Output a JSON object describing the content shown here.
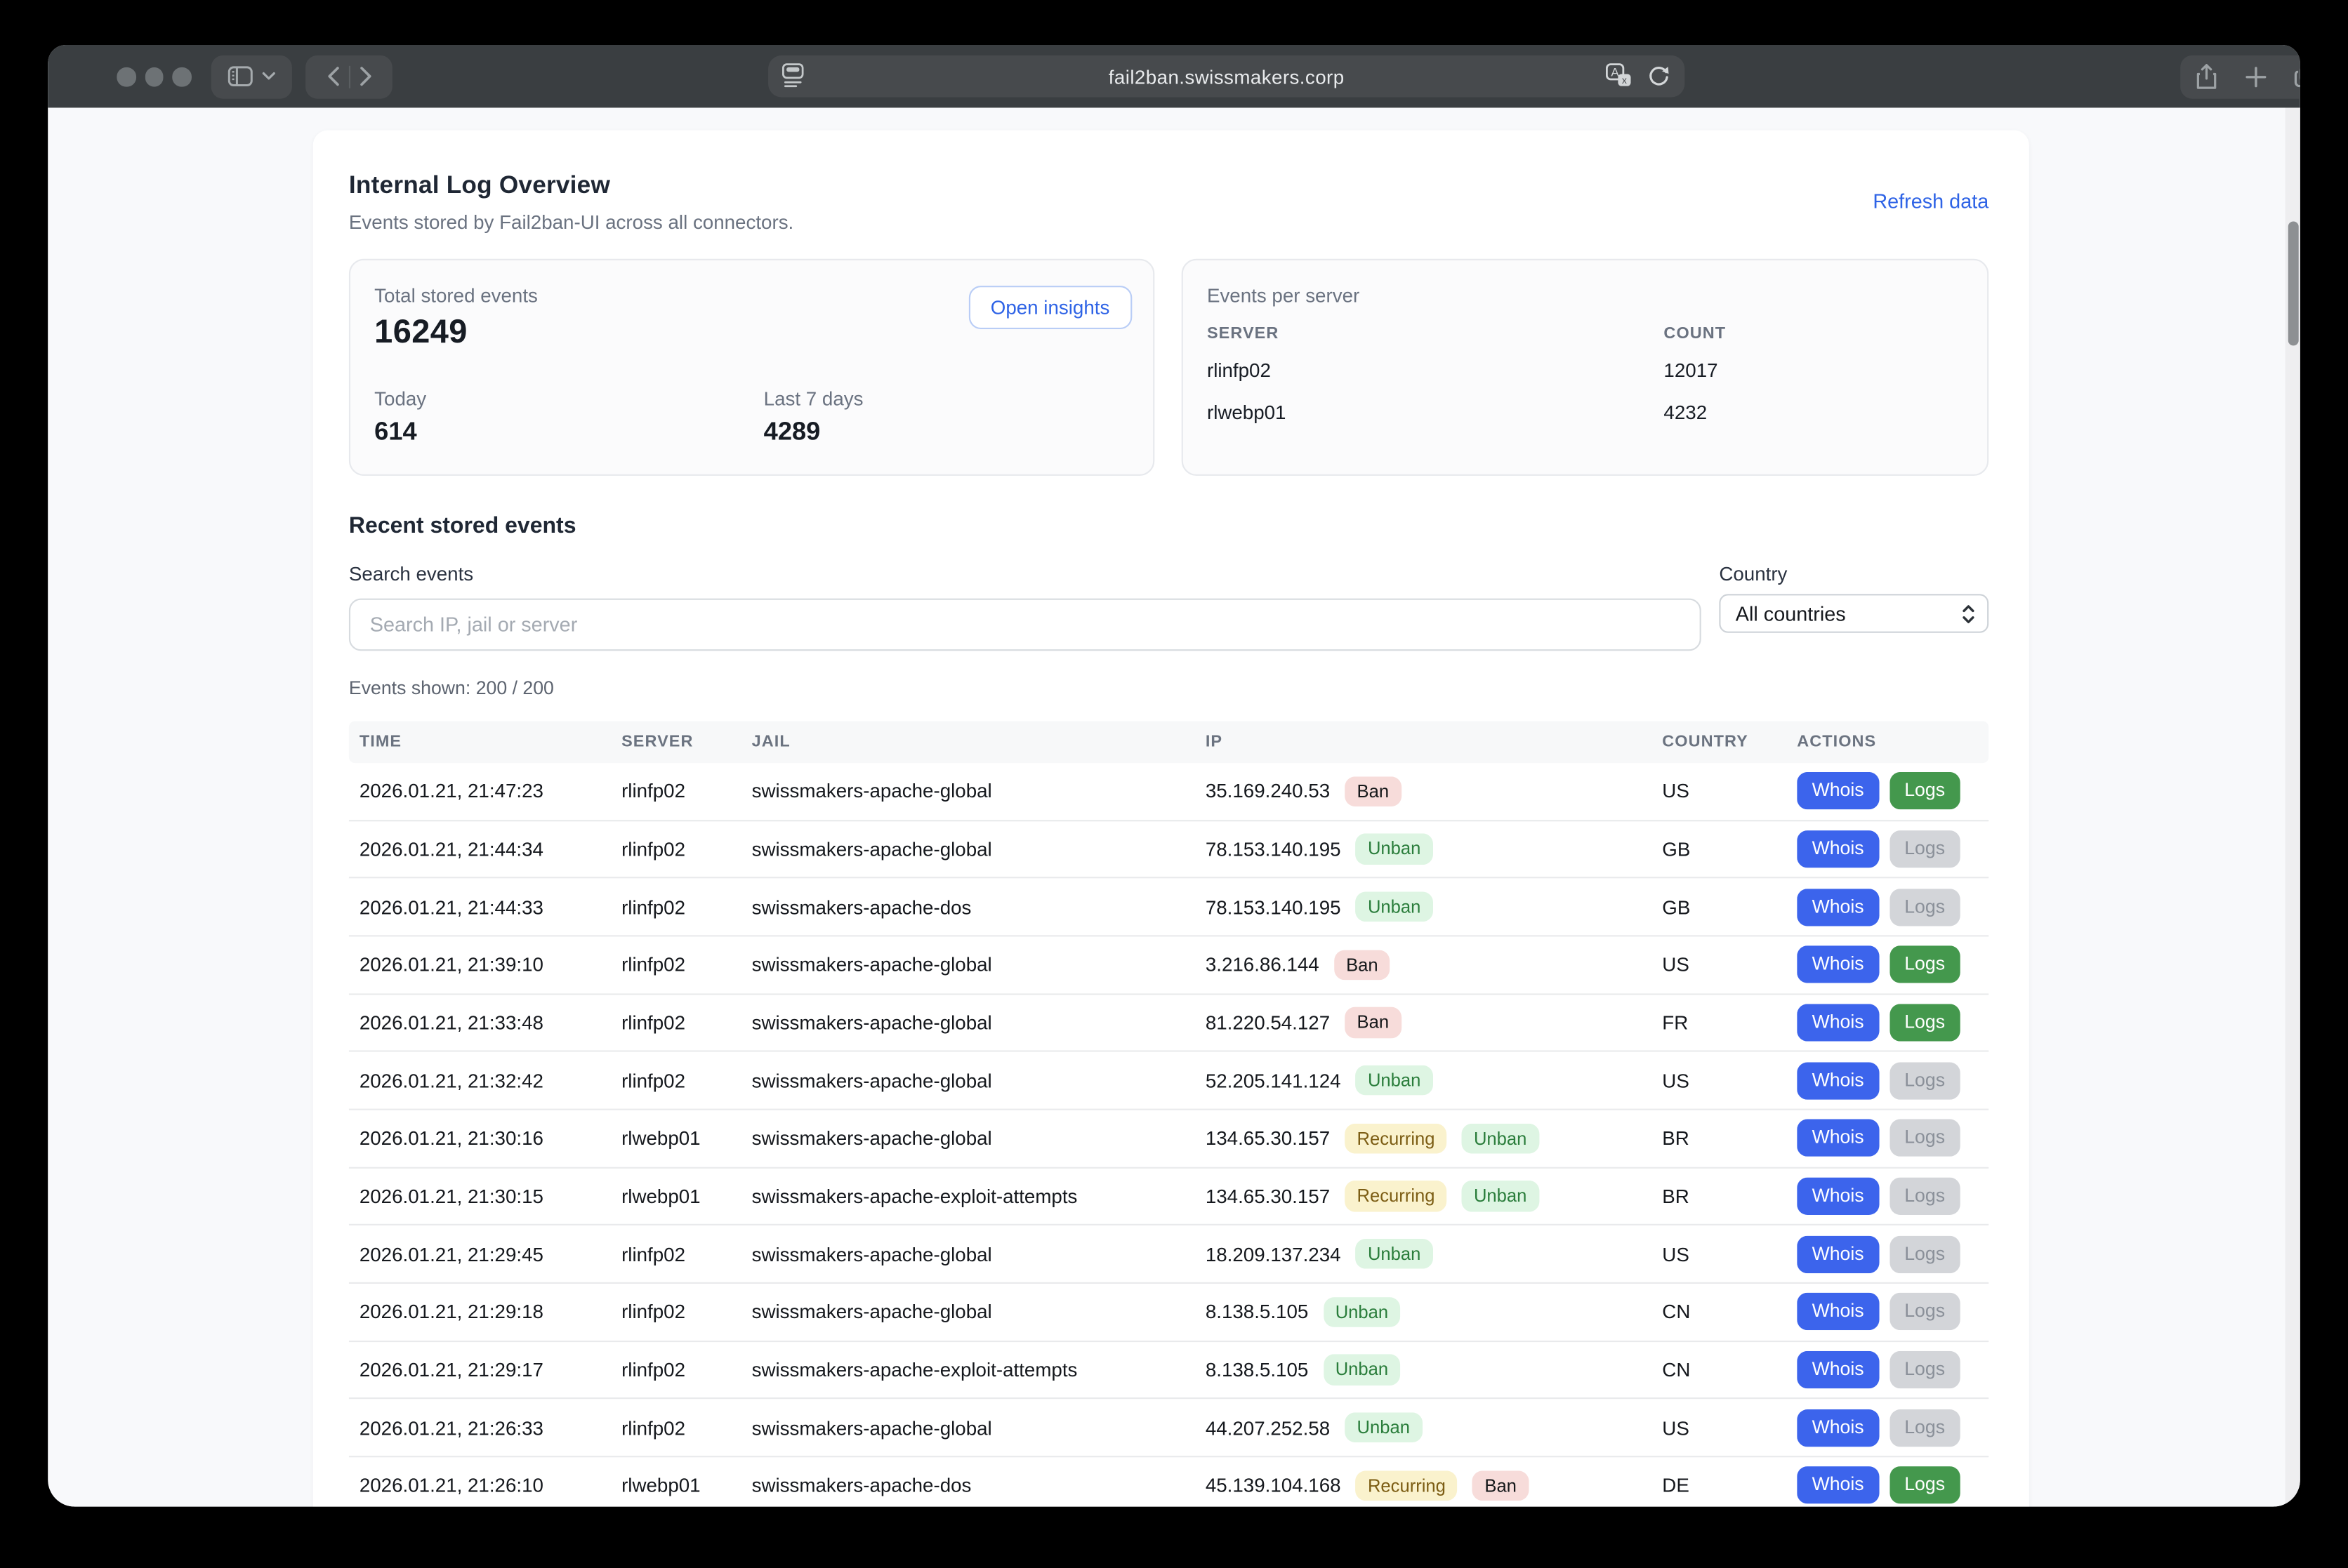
{
  "browser": {
    "url": "fail2ban.swissmakers.corp",
    "icons": [
      "sidebar-icon",
      "chevron-down-icon",
      "back-icon",
      "forward-icon",
      "page-icon",
      "translate-icon",
      "reload-icon",
      "share-icon",
      "new-tab-icon",
      "tab-overview-icon"
    ]
  },
  "page": {
    "title": "Internal Log Overview",
    "subtitle": "Events stored by Fail2ban-UI across all connectors.",
    "refresh_link": "Refresh data",
    "stats": {
      "total_label": "Total stored events",
      "total_value": "16249",
      "open_insights_label": "Open insights",
      "today_label": "Today",
      "today_value": "614",
      "week_label": "Last 7 days",
      "week_value": "4289"
    },
    "per_server": {
      "title": "Events per server",
      "col_server": "SERVER",
      "col_count": "COUNT",
      "rows": [
        {
          "server": "rlinfp02",
          "count": "12017"
        },
        {
          "server": "rlwebp01",
          "count": "4232"
        }
      ]
    },
    "events": {
      "heading": "Recent stored events",
      "search_label": "Search events",
      "search_placeholder": "Search IP, jail or server",
      "search_value": "",
      "country_label": "Country",
      "country_value": "All countries",
      "shown_text": "Events shown: 200 / 200",
      "columns": [
        "TIME",
        "SERVER",
        "JAIL",
        "IP",
        "COUNTRY",
        "ACTIONS"
      ],
      "actions": {
        "whois_label": "Whois",
        "logs_label": "Logs"
      },
      "rows": [
        {
          "time": "2026.01.21, 21:47:23",
          "server": "rlinfp02",
          "jail": "swissmakers-apache-global",
          "ip": "35.169.240.53",
          "badges": [
            {
              "label": "Ban",
              "type": "ban"
            }
          ],
          "country": "US",
          "logs_active": true
        },
        {
          "time": "2026.01.21, 21:44:34",
          "server": "rlinfp02",
          "jail": "swissmakers-apache-global",
          "ip": "78.153.140.195",
          "badges": [
            {
              "label": "Unban",
              "type": "unban"
            }
          ],
          "country": "GB",
          "logs_active": false
        },
        {
          "time": "2026.01.21, 21:44:33",
          "server": "rlinfp02",
          "jail": "swissmakers-apache-dos",
          "ip": "78.153.140.195",
          "badges": [
            {
              "label": "Unban",
              "type": "unban"
            }
          ],
          "country": "GB",
          "logs_active": false
        },
        {
          "time": "2026.01.21, 21:39:10",
          "server": "rlinfp02",
          "jail": "swissmakers-apache-global",
          "ip": "3.216.86.144",
          "badges": [
            {
              "label": "Ban",
              "type": "ban"
            }
          ],
          "country": "US",
          "logs_active": true
        },
        {
          "time": "2026.01.21, 21:33:48",
          "server": "rlinfp02",
          "jail": "swissmakers-apache-global",
          "ip": "81.220.54.127",
          "badges": [
            {
              "label": "Ban",
              "type": "ban"
            }
          ],
          "country": "FR",
          "logs_active": true
        },
        {
          "time": "2026.01.21, 21:32:42",
          "server": "rlinfp02",
          "jail": "swissmakers-apache-global",
          "ip": "52.205.141.124",
          "badges": [
            {
              "label": "Unban",
              "type": "unban"
            }
          ],
          "country": "US",
          "logs_active": false
        },
        {
          "time": "2026.01.21, 21:30:16",
          "server": "rlwebp01",
          "jail": "swissmakers-apache-global",
          "ip": "134.65.30.157",
          "badges": [
            {
              "label": "Recurring",
              "type": "recurring"
            },
            {
              "label": "Unban",
              "type": "unban"
            }
          ],
          "country": "BR",
          "logs_active": false
        },
        {
          "time": "2026.01.21, 21:30:15",
          "server": "rlwebp01",
          "jail": "swissmakers-apache-exploit-attempts",
          "ip": "134.65.30.157",
          "badges": [
            {
              "label": "Recurring",
              "type": "recurring"
            },
            {
              "label": "Unban",
              "type": "unban"
            }
          ],
          "country": "BR",
          "logs_active": false
        },
        {
          "time": "2026.01.21, 21:29:45",
          "server": "rlinfp02",
          "jail": "swissmakers-apache-global",
          "ip": "18.209.137.234",
          "badges": [
            {
              "label": "Unban",
              "type": "unban"
            }
          ],
          "country": "US",
          "logs_active": false
        },
        {
          "time": "2026.01.21, 21:29:18",
          "server": "rlinfp02",
          "jail": "swissmakers-apache-global",
          "ip": "8.138.5.105",
          "badges": [
            {
              "label": "Unban",
              "type": "unban"
            }
          ],
          "country": "CN",
          "logs_active": false
        },
        {
          "time": "2026.01.21, 21:29:17",
          "server": "rlinfp02",
          "jail": "swissmakers-apache-exploit-attempts",
          "ip": "8.138.5.105",
          "badges": [
            {
              "label": "Unban",
              "type": "unban"
            }
          ],
          "country": "CN",
          "logs_active": false
        },
        {
          "time": "2026.01.21, 21:26:33",
          "server": "rlinfp02",
          "jail": "swissmakers-apache-global",
          "ip": "44.207.252.58",
          "badges": [
            {
              "label": "Unban",
              "type": "unban"
            }
          ],
          "country": "US",
          "logs_active": false
        },
        {
          "time": "2026.01.21, 21:26:10",
          "server": "rlwebp01",
          "jail": "swissmakers-apache-dos",
          "ip": "45.139.104.168",
          "badges": [
            {
              "label": "Recurring",
              "type": "recurring"
            },
            {
              "label": "Ban",
              "type": "ban"
            }
          ],
          "country": "DE",
          "logs_active": true
        }
      ]
    }
  },
  "colors": {
    "toolbar_bg": "#3a3e41",
    "toolbar_pill_bg": "#474a4d",
    "page_bg": "#f8f9fb",
    "card_bg": "#ffffff",
    "accent_blue": "#2e63e6",
    "button_blue": "#3c64ec",
    "button_green": "#44984d",
    "button_gray": "#d3d5d9",
    "badge_ban_bg": "#f7dcda",
    "badge_unban_bg": "#def5e3",
    "badge_unban_text": "#2a7d3b",
    "badge_recurring_bg": "#faf2cd",
    "badge_recurring_text": "#7c5d14",
    "title_text": "#1f2734",
    "muted_text": "#6a7280"
  }
}
